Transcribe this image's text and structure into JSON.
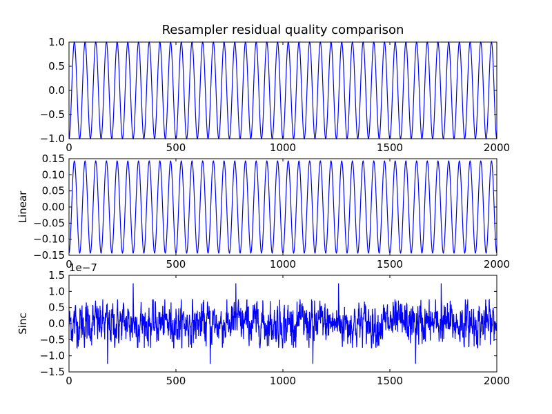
{
  "chart_data": {
    "type": "line",
    "title": "Resampler residual quality comparison",
    "line_color": "#0000ff",
    "panels": [
      {
        "id": "signal",
        "ylabel": "",
        "xlim": [
          0,
          2000
        ],
        "ylim": [
          -1.0,
          1.0
        ],
        "xticks": [
          "0",
          "500",
          "1000",
          "1500",
          "2000"
        ],
        "yticks": [
          "1.0",
          "0.5",
          "0.0",
          "−0.5",
          "−1.0"
        ],
        "ytick_values": [
          1.0,
          0.5,
          0.0,
          -0.5,
          -1.0
        ],
        "series": [
          {
            "kind": "sine",
            "amplitude": 1.0,
            "period": 50,
            "phase": -1.5708,
            "n": 2001
          }
        ]
      },
      {
        "id": "linear",
        "ylabel": "Linear",
        "xlim": [
          0,
          2000
        ],
        "ylim": [
          -0.15,
          0.15
        ],
        "xticks": [
          "0",
          "500",
          "1000",
          "1500",
          "2000"
        ],
        "yticks": [
          "0.15",
          "0.10",
          "0.05",
          "0.00",
          "−0.05",
          "−0.10",
          "−0.15"
        ],
        "ytick_values": [
          0.15,
          0.1,
          0.05,
          0.0,
          -0.05,
          -0.1,
          -0.15
        ],
        "series": [
          {
            "kind": "sine",
            "amplitude": 0.143,
            "period": 50,
            "phase": -1.5708,
            "n": 2001
          }
        ]
      },
      {
        "id": "sinc",
        "ylabel": "Sinc",
        "offset_label": "1e−7",
        "xlim": [
          0,
          2000
        ],
        "ylim": [
          -1.5,
          1.5
        ],
        "xticks": [
          "0",
          "500",
          "1000",
          "1500",
          "2000"
        ],
        "yticks": [
          "1.5",
          "1.0",
          "0.5",
          "0.0",
          "−0.5",
          "−1.0",
          "−1.5"
        ],
        "ytick_values": [
          1.5,
          1.0,
          0.5,
          0.0,
          -0.5,
          -1.0,
          -1.5
        ],
        "series": [
          {
            "kind": "noise",
            "amplitude": 0.28,
            "n": 2001,
            "spikes": [
              {
                "x": 180,
                "y": -1.25
              },
              {
                "x": 300,
                "y": 1.25
              },
              {
                "x": 660,
                "y": -1.25
              },
              {
                "x": 780,
                "y": 1.25
              },
              {
                "x": 1140,
                "y": -1.25
              },
              {
                "x": 1260,
                "y": 1.25
              },
              {
                "x": 1620,
                "y": -1.25
              },
              {
                "x": 1740,
                "y": 1.25
              }
            ]
          }
        ]
      }
    ]
  }
}
